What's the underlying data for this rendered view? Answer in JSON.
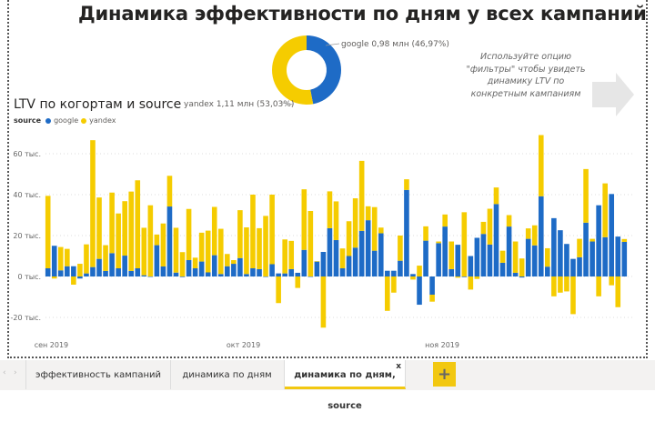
{
  "header": {
    "title": "Динамика эффективности по дням у всех  кампаний"
  },
  "donut": {
    "slices": [
      {
        "name": "google",
        "label": "google 0,98 млн (46,97%)",
        "percent": 46.97,
        "color": "#1e6bc6"
      },
      {
        "name": "yandex",
        "label": "yandex 1,11 млн (53,03%)",
        "percent": 53.03,
        "color": "#f5cc00"
      }
    ]
  },
  "hint": {
    "text": "Используйте опцию \"фильтры\" чтобы увидеть динамику LTV по конкретным кампаниям",
    "icon": "arrow-right-icon"
  },
  "chart_data": {
    "type": "bar",
    "stacked": true,
    "title": "LTV по когортам и source",
    "legend": {
      "title": "source",
      "position": "top-left",
      "items": [
        {
          "name": "google",
          "color": "#1e6bc6"
        },
        {
          "name": "yandex",
          "color": "#f5cc00"
        }
      ]
    },
    "x_start": "2019-09-01",
    "x_end": "2019-11-30",
    "x_ticks": [
      "сен 2019",
      "окт 2019",
      "ноя 2019"
    ],
    "y_ticks": [
      "60 тыс.",
      "40 тыс.",
      "20 тыс.",
      "0 тыс.",
      "-20 тыс."
    ],
    "y_tick_values": [
      60,
      40,
      20,
      0,
      -20
    ],
    "ylim": [
      -25,
      70
    ],
    "y_unit": "тыс.",
    "grid": true,
    "series": [
      {
        "name": "google",
        "values": [
          4,
          15,
          3,
          5,
          5,
          -1,
          1.5,
          4.6,
          8.6,
          2.7,
          11.4,
          4,
          10.2,
          2.7,
          4,
          0.6,
          0,
          15.3,
          4.9,
          34.2,
          1.9,
          -0.3,
          8,
          4,
          7.3,
          2,
          10.4,
          1.2,
          5,
          6.2,
          9,
          1.2,
          4,
          3.6,
          0,
          6,
          1.5,
          1.5,
          3.6,
          1.8,
          13,
          0,
          7.4,
          12,
          23.6,
          17.8,
          4,
          10,
          14.1,
          22.3,
          27.5,
          12.6,
          21.1,
          2.8,
          2.8,
          7.7,
          42.3,
          1.2,
          -13.8,
          17.5,
          -8.9,
          16.3,
          24.4,
          3.6,
          15.5,
          -0.3,
          10,
          18.9,
          20.8,
          15.6,
          35.4,
          6.7,
          24.4,
          1.8,
          -0.5,
          18.4,
          15.2,
          39.2,
          4.8,
          28.5,
          22.6,
          15.9,
          8.6,
          9.4,
          26.3,
          17.1,
          34.8,
          19.2,
          40.3,
          19.5,
          16.9
        ]
      },
      {
        "name": "yandex",
        "values": [
          35.4,
          -1,
          11.4,
          8.5,
          -4,
          6.2,
          14.2,
          62,
          30,
          12.6,
          29.6,
          26.8,
          26.6,
          38.8,
          43,
          23.2,
          34.8,
          5.2,
          21,
          15,
          21.9,
          11.9,
          25,
          5.2,
          14.1,
          20.4,
          23.6,
          22.1,
          6,
          1.8,
          23.4,
          22.8,
          36,
          20,
          29.6,
          34,
          -13,
          16.6,
          13.8,
          -5.6,
          29.6,
          32,
          0,
          -25,
          18,
          18.9,
          9.7,
          17,
          24.1,
          34.2,
          6.8,
          21.3,
          2.8,
          -16.8,
          -7.9,
          12.3,
          5.2,
          -1.5,
          5.3,
          7,
          -3.4,
          0.8,
          5.9,
          13.5,
          -0.6,
          31.4,
          -6.4,
          -1.2,
          5.9,
          17.5,
          8.1,
          5.9,
          5.6,
          15.3,
          8.8,
          5.1,
          9.8,
          29.9,
          9,
          -9.7,
          -7.9,
          -7.3,
          -18.4,
          9,
          26.2,
          1.3,
          -9.7,
          26.3,
          -4.3,
          -15,
          1.4
        ]
      }
    ]
  },
  "tabs": [
    {
      "label": "эффективность кампаний"
    },
    {
      "label": "динамика по дням"
    },
    {
      "label": "динамика по дням, source",
      "active": true,
      "close": "x"
    }
  ],
  "add_tab": "+"
}
